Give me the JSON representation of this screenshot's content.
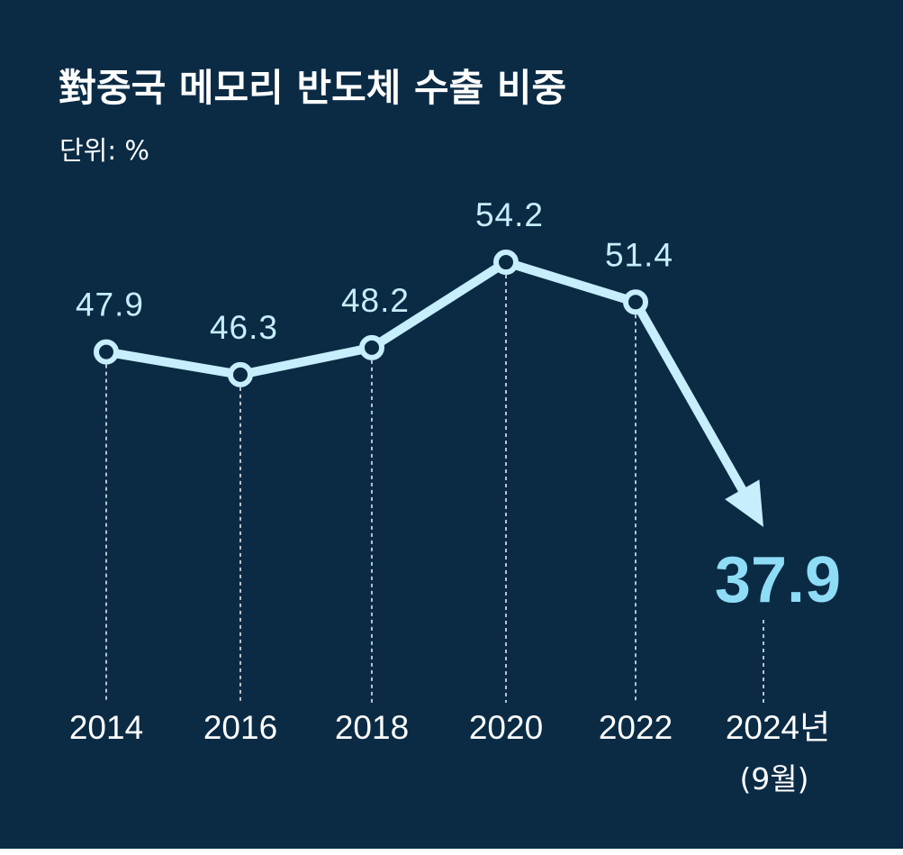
{
  "chart_data": {
    "type": "line",
    "title": "對중국 메모리 반도체 수출 비중",
    "unit_label": "단위: %",
    "categories": [
      "2014",
      "2016",
      "2018",
      "2020",
      "2022",
      "2024년"
    ],
    "category_notes": [
      "",
      "",
      "",
      "",
      "",
      "(9월)"
    ],
    "values": [
      47.9,
      46.3,
      48.2,
      54.2,
      51.4,
      37.9
    ],
    "value_labels": [
      "47.9",
      "46.3",
      "48.2",
      "54.2",
      "51.4",
      "37.9"
    ],
    "ylim": [
      36,
      56
    ],
    "grid": false,
    "legend": "none",
    "final_value_highlighted": true,
    "colors": {
      "background": "#0b2b45",
      "line": "#c6eefc",
      "highlight": "#8fdcf6",
      "text": "#ffffff"
    }
  }
}
